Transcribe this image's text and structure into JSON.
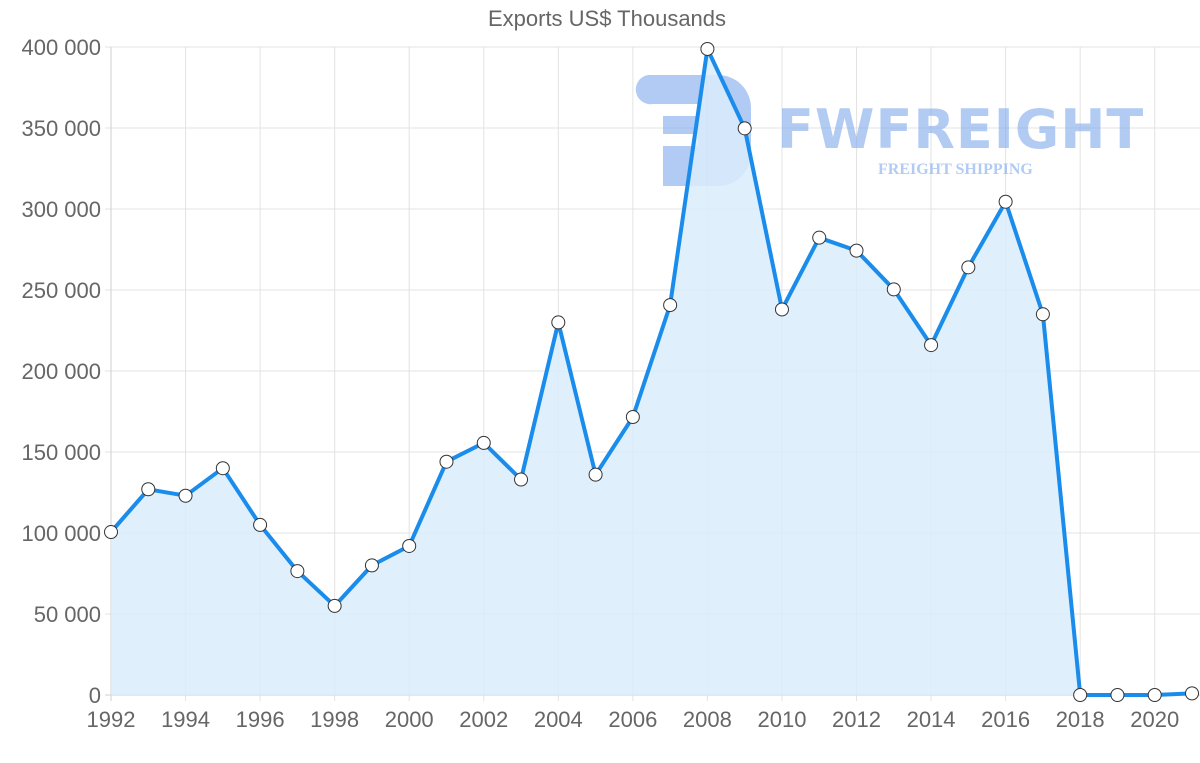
{
  "chart_data": {
    "type": "area",
    "title": "Exports US$ Thousands",
    "xlabel": "",
    "ylabel": "",
    "x": [
      1992,
      1993,
      1994,
      1995,
      1996,
      1997,
      1998,
      1999,
      2000,
      2001,
      2002,
      2003,
      2004,
      2005,
      2006,
      2007,
      2008,
      2009,
      2010,
      2011,
      2012,
      2013,
      2014,
      2015,
      2016,
      2017,
      2018,
      2019,
      2020,
      2021
    ],
    "series": [
      {
        "name": "Exports US$ Thousands",
        "values": [
          100600,
          127000,
          123000,
          140000,
          105000,
          76500,
          55000,
          80000,
          92000,
          144000,
          155600,
          133000,
          230000,
          136000,
          171600,
          240700,
          398800,
          349800,
          238000,
          282300,
          274300,
          250400,
          216000,
          264000,
          304500,
          235000,
          0,
          0,
          0,
          1000
        ]
      }
    ],
    "ylim": [
      0,
      400000
    ],
    "y_ticks": [
      "0",
      "50 000",
      "100 000",
      "150 000",
      "200 000",
      "250 000",
      "300 000",
      "350 000",
      "400 000"
    ],
    "x_ticks": [
      "1992",
      "1994",
      "1996",
      "1998",
      "2000",
      "2002",
      "2004",
      "2006",
      "2008",
      "2010",
      "2012",
      "2014",
      "2016",
      "2018",
      "2020"
    ],
    "grid": true,
    "legend": "none",
    "colors": {
      "line": "#1a8cec",
      "fill": "#dbecfc",
      "point_fill": "#ffffff",
      "point_stroke": "#333333",
      "grid": "#e3e3e3",
      "axis_text": "#666666"
    }
  },
  "watermark": {
    "brand": "FWFREIGHT",
    "tagline": "FREIGHT SHIPPING",
    "color": "#7fa9ec"
  }
}
